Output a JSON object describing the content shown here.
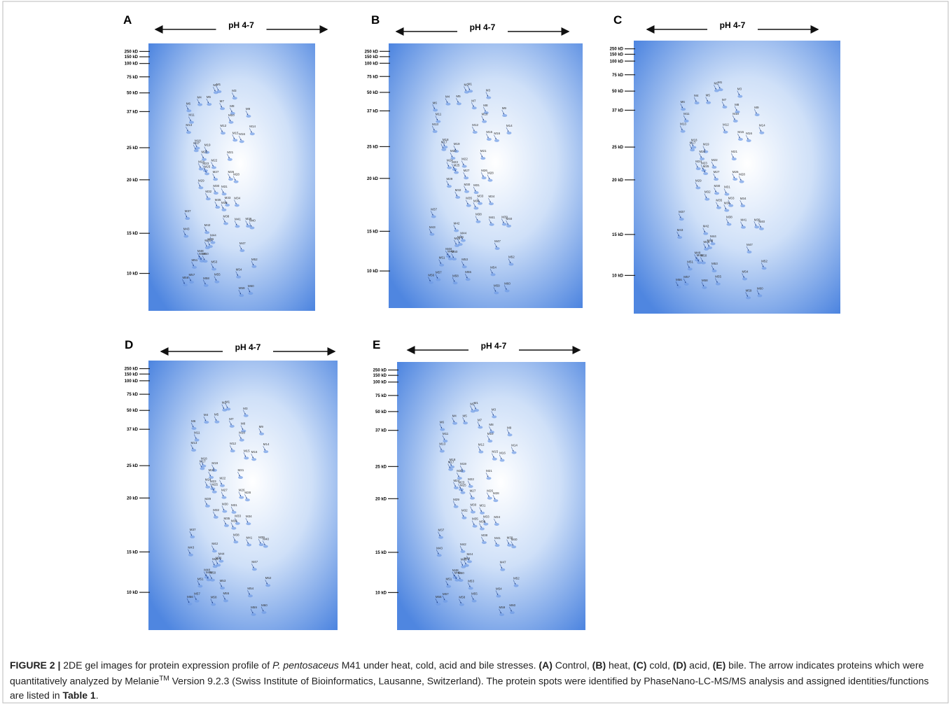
{
  "panels": [
    {
      "letter": "A",
      "ph": "pH 4-7"
    },
    {
      "letter": "B",
      "ph": "pH 4-7"
    },
    {
      "letter": "C",
      "ph": "pH 4-7"
    },
    {
      "letter": "D",
      "ph": "pH 4-7"
    },
    {
      "letter": "E",
      "ph": "pH 4-7"
    }
  ],
  "markers": [
    "250 kD",
    "150 kD",
    "100 kD",
    "75 kD",
    "50 kD",
    "37 kD",
    "25 kD",
    "20 kD",
    "15 kD",
    "10 kD"
  ],
  "spot_labels": [
    "M1",
    "M2",
    "M3",
    "M4",
    "M5",
    "M6",
    "M7",
    "M8",
    "M9",
    "M10",
    "M11",
    "M12",
    "M13",
    "M14",
    "M15",
    "M16",
    "M17",
    "M18",
    "M19",
    "M20",
    "M21",
    "M22",
    "M23",
    "M24",
    "M25",
    "M26",
    "M27",
    "M28",
    "M29",
    "M30",
    "M31",
    "M32",
    "M33",
    "M34",
    "M35",
    "M36",
    "M37",
    "M38",
    "M39",
    "M40",
    "M41",
    "M42",
    "M43",
    "M44",
    "M45",
    "M46",
    "M47",
    "M48",
    "M49",
    "M50",
    "M51",
    "M52",
    "M53",
    "M54",
    "M55",
    "M56",
    "M57",
    "M58",
    "M59",
    "M60"
  ],
  "caption": {
    "parts": [
      "FIGURE 2 |",
      " 2DE gel images for protein expression profile of ",
      "P. pentosaceus",
      " M41 under heat, cold, acid and bile stresses. ",
      "(A)",
      " Control, ",
      "(B)",
      " heat, ",
      "(C)",
      " cold, ",
      "(D)",
      " acid, ",
      "(E)",
      " bile. The arrow indicates proteins which were quantitatively analyzed by Melanie",
      "TM",
      " Version 9.2.3 (Swiss Institute of Bioinformatics, Lausanne, Switzerland). The protein spots were identified by PhaseNano-LC-MS/MS analysis and assigned identities/functions are listed in ",
      "Table 1",
      "."
    ]
  }
}
